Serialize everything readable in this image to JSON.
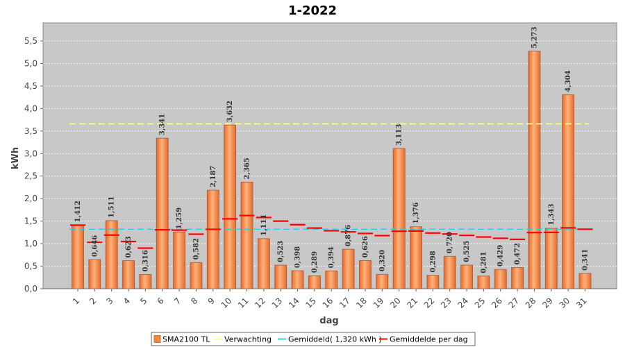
{
  "chart_data": {
    "type": "bar",
    "title": "1-2022",
    "xlabel": "dag",
    "ylabel": "kWh",
    "ylim": [
      0,
      5.9
    ],
    "yticks": [
      "0,0",
      "0,5",
      "1,0",
      "1,5",
      "2,0",
      "2,5",
      "3,0",
      "3,5",
      "4,0",
      "4,5",
      "5,0",
      "5,5"
    ],
    "categories": [
      "1",
      "2",
      "3",
      "4",
      "5",
      "6",
      "7",
      "8",
      "9",
      "10",
      "11",
      "12",
      "13",
      "14",
      "15",
      "16",
      "17",
      "18",
      "19",
      "20",
      "21",
      "22",
      "23",
      "24",
      "25",
      "26",
      "27",
      "28",
      "29",
      "30",
      "31"
    ],
    "series": [
      {
        "name": "SMA2100 TL",
        "values": [
          1.412,
          0.646,
          1.511,
          0.623,
          0.316,
          3.341,
          1.259,
          0.582,
          2.187,
          3.632,
          2.365,
          1.111,
          0.523,
          0.398,
          0.289,
          0.394,
          0.876,
          0.626,
          0.32,
          3.113,
          1.376,
          0.298,
          0.72,
          0.525,
          0.281,
          0.429,
          0.472,
          5.273,
          1.343,
          4.304,
          0.341
        ],
        "labels": [
          "1,412",
          "0,646",
          "1,511",
          "0,623",
          "0,316",
          "3,341",
          "1,259",
          "0,582",
          "2,187",
          "3,632",
          "2,365",
          "1,111",
          "0,523",
          "0,398",
          "0,289",
          "0,394",
          "0,876",
          "0,626",
          "0,320",
          "3,113",
          "1,376",
          "0,298",
          "0,720",
          "0,525",
          "0,281",
          "0,429",
          "0,472",
          "5,273",
          "1,343",
          "4,304",
          "0,341"
        ],
        "color": "#f58a3c"
      },
      {
        "name": "Verwachting",
        "type": "line",
        "value": 3.66,
        "color": "#ffff99"
      },
      {
        "name": "Gemiddeld( 1,320 kWh )",
        "type": "line",
        "value": 1.32,
        "color": "#33cccc"
      },
      {
        "name": "Gemiddelde per dag",
        "type": "marker",
        "values": [
          1.412,
          1.029,
          1.19,
          1.048,
          0.901,
          1.308,
          1.3,
          1.21,
          1.318,
          1.55,
          1.624,
          1.581,
          1.5,
          1.421,
          1.346,
          1.286,
          1.262,
          1.227,
          1.179,
          1.276,
          1.281,
          1.236,
          1.214,
          1.184,
          1.148,
          1.12,
          1.096,
          1.245,
          1.249,
          1.351,
          1.32
        ],
        "color": "#ff0000"
      }
    ],
    "grid": true,
    "legend": "bottom"
  },
  "legend_items": [
    {
      "label": "SMA2100 TL",
      "swatch": "bar",
      "color": "#f58a3c"
    },
    {
      "label": "Verwachting",
      "swatch": "line",
      "color": "#ffff99"
    },
    {
      "label": "Gemiddeld( 1,320 kWh )",
      "swatch": "line",
      "color": "#33cccc"
    },
    {
      "label": "Gemiddelde per dag",
      "swatch": "line",
      "color": "#ff0000"
    }
  ]
}
